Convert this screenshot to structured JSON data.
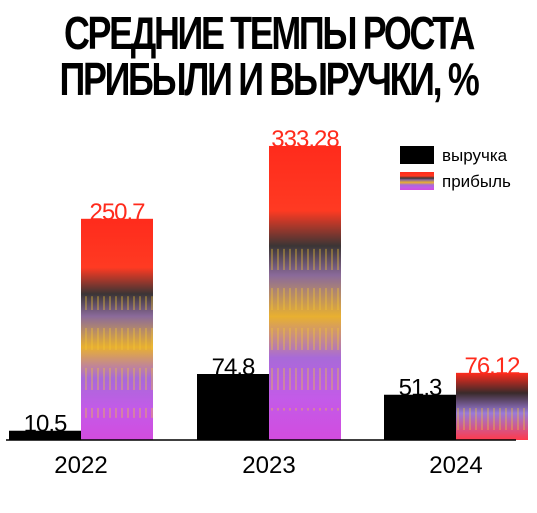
{
  "header": {
    "title_line1": "СРЕДНИЕ ТЕМПЫ РОСТА",
    "title_line2": "ПРИБЫЛИ И ВЫРУЧКИ, %"
  },
  "chart_data": {
    "type": "bar",
    "title": "СРЕДНИЕ ТЕМПЫ РОСТА ПРИБЫЛИ И ВЫРУЧКИ, %",
    "categories": [
      "2022",
      "2023",
      "2024"
    ],
    "series": [
      {
        "name": "выручка",
        "values": [
          10.5,
          74.8,
          51.3
        ],
        "labels": [
          "10.5",
          "74.8",
          "51.3"
        ],
        "color": "#000000"
      },
      {
        "name": "прибыль",
        "values": [
          250.7,
          333.28,
          76.12
        ],
        "labels": [
          "250.7",
          "333.28",
          "76.12"
        ],
        "color": "#ff2b1c"
      }
    ],
    "ylim": [
      0,
      340
    ],
    "grid": false,
    "legend": "top-right",
    "label_colors": {
      "выручка": "#000000",
      "прибыль": "#ff2b1c"
    }
  }
}
